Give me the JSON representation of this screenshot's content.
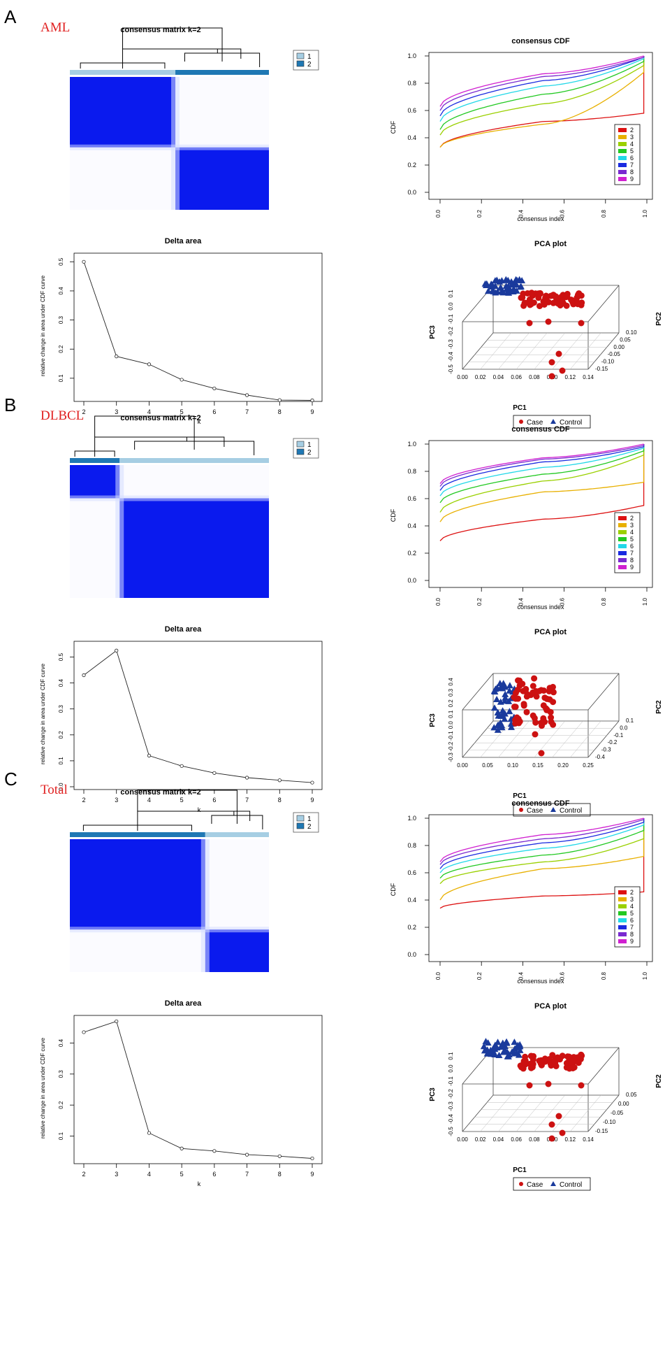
{
  "colors": {
    "heat_blue": "#0a1aee",
    "heat_light": "#d4dcff",
    "cluster1": "#a6cee3",
    "cluster2": "#1f78b4",
    "case": "#cc1111",
    "control": "#1a3a9c",
    "panel_tag": "#e02020"
  },
  "chart_data": [
    {
      "panel": "A",
      "dataset": "AML",
      "heatmap": {
        "type": "heatmap",
        "title": "consensus matrix k=2",
        "legend": [
          "1",
          "2"
        ],
        "split": 0.53,
        "order": [
          1,
          2
        ]
      },
      "cdf": {
        "type": "line",
        "title": "consensus CDF",
        "xlabel": "consensus index",
        "ylabel": "CDF",
        "xticks": [
          "0.0",
          "0.2",
          "0.4",
          "0.6",
          "0.8",
          "1.0"
        ],
        "yticks": [
          "0.0",
          "0.2",
          "0.4",
          "0.6",
          "0.8",
          "1.0"
        ],
        "legend": [
          "2",
          "3",
          "4",
          "5",
          "6",
          "7",
          "8",
          "9"
        ],
        "series": [
          {
            "name": "2",
            "start": 0.33,
            "mid": 0.52,
            "end": 0.58
          },
          {
            "name": "3",
            "start": 0.33,
            "mid": 0.5,
            "end": 0.88
          },
          {
            "name": "4",
            "start": 0.42,
            "mid": 0.65,
            "end": 0.93
          },
          {
            "name": "5",
            "start": 0.46,
            "mid": 0.72,
            "end": 0.96
          },
          {
            "name": "6",
            "start": 0.52,
            "mid": 0.78,
            "end": 0.98
          },
          {
            "name": "7",
            "start": 0.56,
            "mid": 0.82,
            "end": 0.99
          },
          {
            "name": "8",
            "start": 0.6,
            "mid": 0.85,
            "end": 0.99
          },
          {
            "name": "9",
            "start": 0.63,
            "mid": 0.87,
            "end": 1.0
          }
        ]
      },
      "delta": {
        "type": "line",
        "title": "Delta area",
        "xlabel": "k",
        "ylabel": "relative change in area under CDF curve",
        "x": [
          2,
          3,
          4,
          5,
          6,
          7,
          8,
          9
        ],
        "values": [
          0.5,
          0.175,
          0.148,
          0.095,
          0.065,
          0.042,
          0.025,
          0.024
        ],
        "ylim": [
          0.03,
          0.52
        ],
        "yticks": [
          "0.1",
          "0.2",
          "0.3",
          "0.4",
          "0.5"
        ]
      },
      "pca": {
        "type": "scatter",
        "title": "PCA plot",
        "xlabel": "PC1",
        "ylabel": "PC3",
        "zlabel": "PC2",
        "xticks": [
          "0.00",
          "0.02",
          "0.04",
          "0.06",
          "0.08",
          "0.10",
          "0.12",
          "0.14"
        ],
        "yticks": [
          "-0.5",
          "-0.4",
          "-0.3",
          "-0.2",
          "-0.1",
          "0.0",
          "0.1"
        ],
        "zticks": [
          "-0.15",
          "-0.10",
          "-0.05",
          "0.00",
          "0.05",
          "0.10"
        ],
        "legend": [
          "Case",
          "Control"
        ]
      }
    },
    {
      "panel": "B",
      "dataset": "DLBCL",
      "heatmap": {
        "type": "heatmap",
        "title": "consensus matrix k=2",
        "legend": [
          "1",
          "2"
        ],
        "split": 0.25,
        "order": [
          2,
          1
        ]
      },
      "cdf": {
        "type": "line",
        "title": "consensus CDF",
        "xlabel": "consensus index",
        "ylabel": "CDF",
        "xticks": [
          "0.0",
          "0.2",
          "0.4",
          "0.6",
          "0.8",
          "1.0"
        ],
        "yticks": [
          "0.0",
          "0.2",
          "0.4",
          "0.6",
          "0.8",
          "1.0"
        ],
        "legend": [
          "2",
          "3",
          "4",
          "5",
          "6",
          "7",
          "8",
          "9"
        ],
        "series": [
          {
            "name": "2",
            "start": 0.29,
            "mid": 0.45,
            "end": 0.55
          },
          {
            "name": "3",
            "start": 0.43,
            "mid": 0.65,
            "end": 0.72
          },
          {
            "name": "4",
            "start": 0.5,
            "mid": 0.73,
            "end": 0.92
          },
          {
            "name": "5",
            "start": 0.57,
            "mid": 0.78,
            "end": 0.95
          },
          {
            "name": "6",
            "start": 0.62,
            "mid": 0.83,
            "end": 0.97
          },
          {
            "name": "7",
            "start": 0.66,
            "mid": 0.87,
            "end": 0.98
          },
          {
            "name": "8",
            "start": 0.69,
            "mid": 0.89,
            "end": 0.99
          },
          {
            "name": "9",
            "start": 0.71,
            "mid": 0.9,
            "end": 1.0
          }
        ]
      },
      "delta": {
        "type": "line",
        "title": "Delta area",
        "xlabel": "k",
        "ylabel": "relative change in area under CDF curve",
        "x": [
          2,
          3,
          4,
          5,
          6,
          7,
          8,
          9
        ],
        "values": [
          0.43,
          0.525,
          0.12,
          0.08,
          0.053,
          0.035,
          0.025,
          0.016
        ],
        "ylim": [
          0.0,
          0.55
        ],
        "yticks": [
          "0.0",
          "0.1",
          "0.2",
          "0.3",
          "0.4",
          "0.5"
        ]
      },
      "pca": {
        "type": "scatter",
        "title": "PCA plot",
        "xlabel": "PC1",
        "ylabel": "PC3",
        "zlabel": "PC2",
        "xticks": [
          "0.00",
          "0.05",
          "0.10",
          "0.15",
          "0.20",
          "0.25"
        ],
        "yticks": [
          "-0.3",
          "-0.2",
          "-0.1",
          "0.0",
          "0.1",
          "0.2",
          "0.3",
          "0.4"
        ],
        "zticks": [
          "-0.4",
          "-0.3",
          "-0.2",
          "-0.1",
          "0.0",
          "0.1"
        ],
        "legend": [
          "Case",
          "Control"
        ]
      }
    },
    {
      "panel": "C",
      "dataset": "Total",
      "heatmap": {
        "type": "heatmap",
        "title": "consensus matrix k=2",
        "legend": [
          "1",
          "2"
        ],
        "split": 0.68,
        "order": [
          2,
          1
        ]
      },
      "cdf": {
        "type": "line",
        "title": "consensus CDF",
        "xlabel": "consensus index",
        "ylabel": "CDF",
        "xticks": [
          "0.0",
          "0.2",
          "0.4",
          "0.6",
          "0.8",
          "1.0"
        ],
        "yticks": [
          "0.0",
          "0.2",
          "0.4",
          "0.6",
          "0.8",
          "1.0"
        ],
        "legend": [
          "2",
          "3",
          "4",
          "5",
          "6",
          "7",
          "8",
          "9"
        ],
        "series": [
          {
            "name": "2",
            "start": 0.34,
            "mid": 0.43,
            "end": 0.46
          },
          {
            "name": "3",
            "start": 0.4,
            "mid": 0.63,
            "end": 0.72
          },
          {
            "name": "4",
            "start": 0.52,
            "mid": 0.68,
            "end": 0.85
          },
          {
            "name": "5",
            "start": 0.56,
            "mid": 0.73,
            "end": 0.91
          },
          {
            "name": "6",
            "start": 0.6,
            "mid": 0.78,
            "end": 0.95
          },
          {
            "name": "7",
            "start": 0.63,
            "mid": 0.82,
            "end": 0.97
          },
          {
            "name": "8",
            "start": 0.66,
            "mid": 0.85,
            "end": 0.99
          },
          {
            "name": "9",
            "start": 0.68,
            "mid": 0.88,
            "end": 1.0
          }
        ]
      },
      "delta": {
        "type": "line",
        "title": "Delta area",
        "xlabel": "k",
        "ylabel": "relative change in area under CDF curve",
        "x": [
          2,
          3,
          4,
          5,
          6,
          7,
          8,
          9
        ],
        "values": [
          0.435,
          0.47,
          0.11,
          0.06,
          0.052,
          0.04,
          0.035,
          0.028
        ],
        "ylim": [
          0.02,
          0.48
        ],
        "yticks": [
          "0.1",
          "0.2",
          "0.3",
          "0.4"
        ]
      },
      "pca": {
        "type": "scatter",
        "title": "PCA plot",
        "xlabel": "PC1",
        "ylabel": "PC3",
        "zlabel": "PC2",
        "xticks": [
          "0.00",
          "0.02",
          "0.04",
          "0.06",
          "0.08",
          "0.10",
          "0.12",
          "0.14"
        ],
        "yticks": [
          "-0.5",
          "-0.4",
          "-0.3",
          "-0.2",
          "-0.1",
          "0.0",
          "0.1"
        ],
        "zticks": [
          "-0.15",
          "-0.10",
          "-0.05",
          "0.00",
          "0.05"
        ],
        "legend": [
          "Case",
          "Control"
        ]
      }
    }
  ]
}
